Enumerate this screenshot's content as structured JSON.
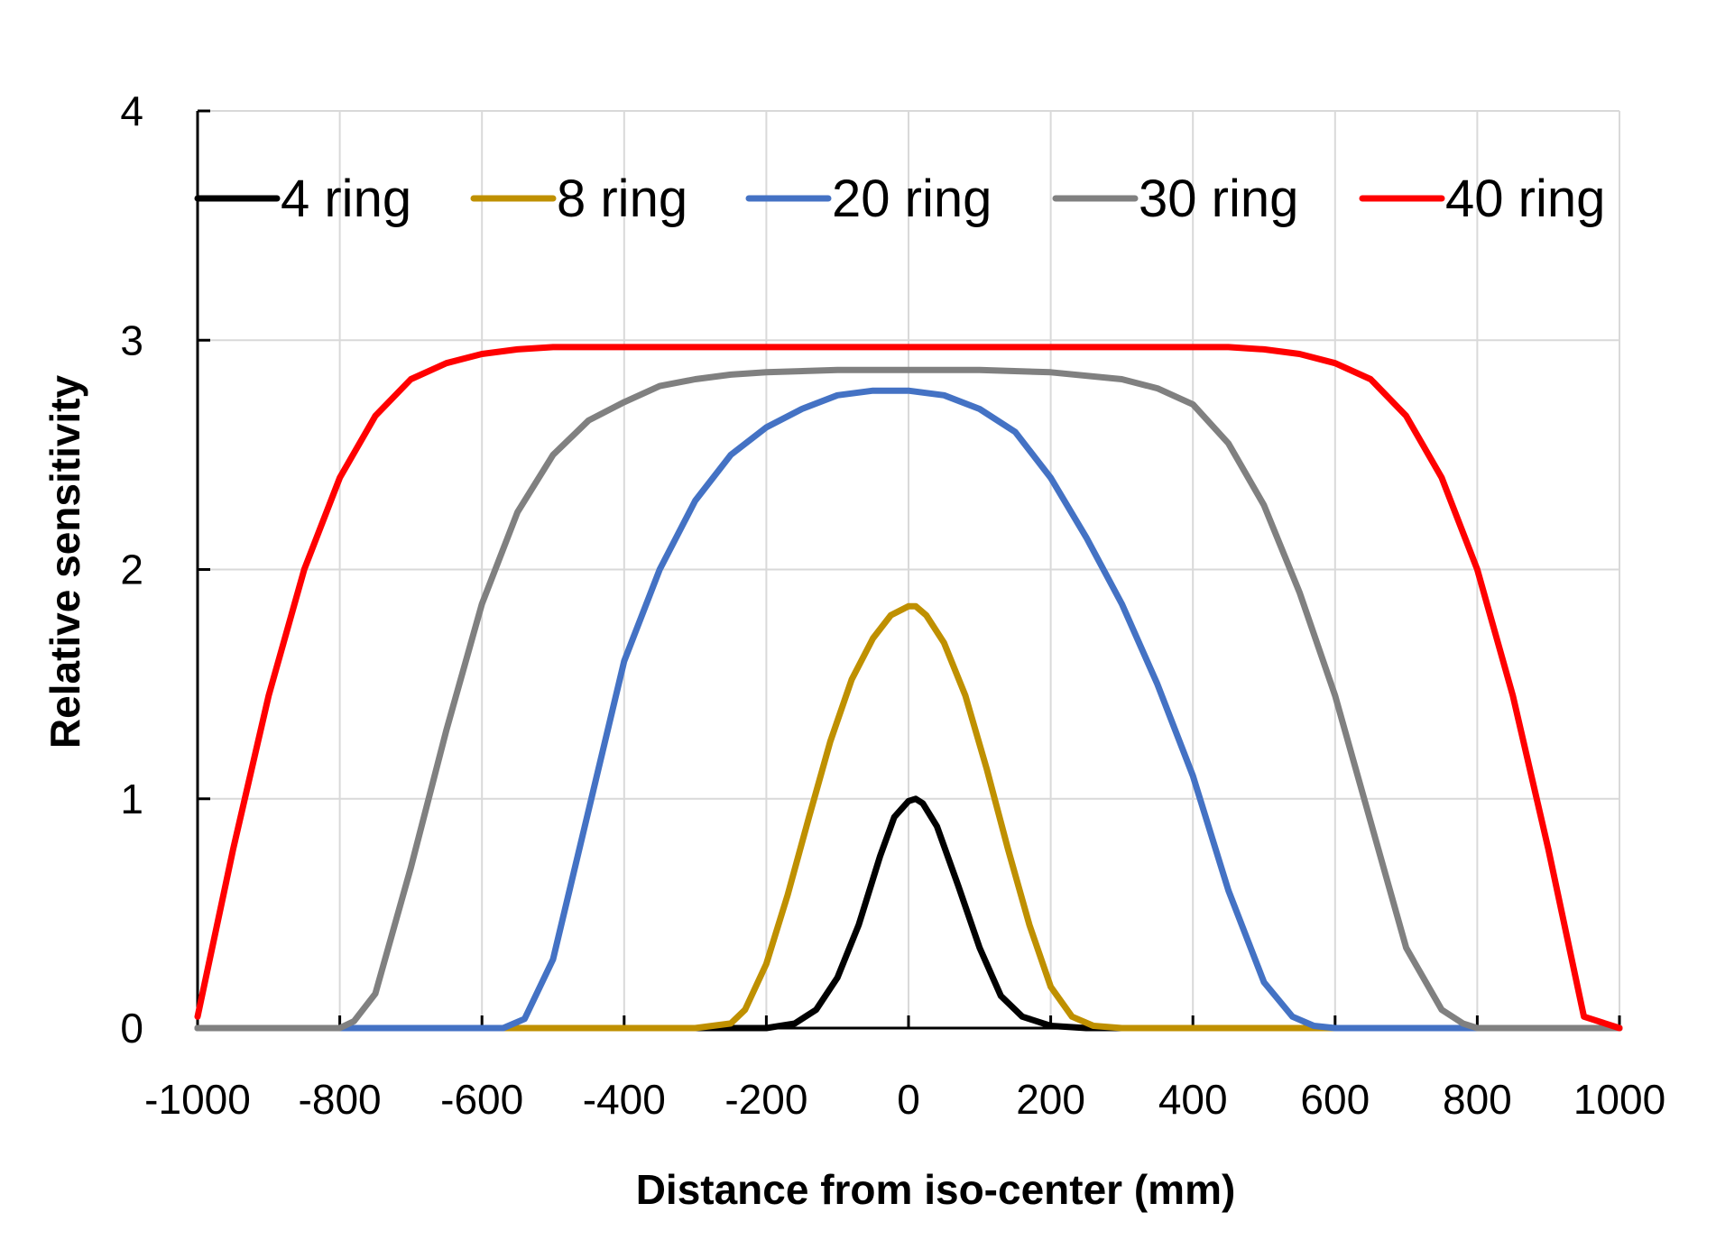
{
  "chart_data": {
    "type": "line",
    "title": "",
    "xlabel": "Distance from iso-center (mm)",
    "ylabel": "Relative sensitivity",
    "xlim": [
      -1000,
      1000
    ],
    "ylim": [
      0,
      4
    ],
    "xticks": [
      -1000,
      -800,
      -600,
      -400,
      -200,
      0,
      200,
      400,
      600,
      800,
      1000
    ],
    "yticks": [
      0,
      1,
      2,
      3,
      4
    ],
    "xtick_labels": [
      "-1000",
      "-800",
      "-600",
      "-400",
      "-200",
      "0",
      "200",
      "400",
      "600",
      "800",
      "1000"
    ],
    "ytick_labels": [
      "0",
      "1",
      "2",
      "3",
      "4"
    ],
    "grid": true,
    "legend_position": "top",
    "series": [
      {
        "name": "4 ring",
        "color": "#000000",
        "x": [
          -1000,
          -250,
          -200,
          -160,
          -130,
          -100,
          -70,
          -40,
          -20,
          0,
          10,
          20,
          40,
          70,
          100,
          130,
          160,
          200,
          250,
          1000
        ],
        "y": [
          0,
          0,
          0,
          0.02,
          0.08,
          0.22,
          0.45,
          0.75,
          0.92,
          0.99,
          1.0,
          0.98,
          0.88,
          0.62,
          0.35,
          0.14,
          0.05,
          0.01,
          0,
          0
        ]
      },
      {
        "name": "8 ring",
        "color": "#BF9000",
        "x": [
          -1000,
          -300,
          -250,
          -230,
          -200,
          -170,
          -140,
          -110,
          -80,
          -50,
          -25,
          0,
          10,
          25,
          50,
          80,
          110,
          140,
          170,
          200,
          230,
          260,
          300,
          1000
        ],
        "y": [
          0,
          0,
          0.02,
          0.08,
          0.28,
          0.58,
          0.92,
          1.25,
          1.52,
          1.7,
          1.8,
          1.84,
          1.84,
          1.8,
          1.68,
          1.45,
          1.13,
          0.78,
          0.45,
          0.18,
          0.05,
          0.01,
          0,
          0
        ]
      },
      {
        "name": "20 ring",
        "color": "#4472C4",
        "x": [
          -1000,
          -570,
          -540,
          -500,
          -450,
          -400,
          -350,
          -300,
          -250,
          -200,
          -150,
          -100,
          -50,
          0,
          50,
          100,
          150,
          200,
          250,
          300,
          350,
          400,
          450,
          500,
          540,
          570,
          600,
          1000
        ],
        "y": [
          0,
          0,
          0.04,
          0.3,
          0.95,
          1.6,
          2.0,
          2.3,
          2.5,
          2.62,
          2.7,
          2.76,
          2.78,
          2.78,
          2.76,
          2.7,
          2.6,
          2.4,
          2.14,
          1.85,
          1.5,
          1.1,
          0.6,
          0.2,
          0.05,
          0.01,
          0,
          0
        ]
      },
      {
        "name": "30 ring",
        "color": "#808080",
        "x": [
          -1000,
          -800,
          -780,
          -750,
          -700,
          -650,
          -600,
          -550,
          -500,
          -450,
          -400,
          -350,
          -300,
          -250,
          -200,
          -100,
          0,
          100,
          200,
          300,
          350,
          400,
          450,
          500,
          550,
          600,
          650,
          700,
          750,
          780,
          800,
          1000
        ],
        "y": [
          0,
          0,
          0.03,
          0.15,
          0.7,
          1.3,
          1.85,
          2.25,
          2.5,
          2.65,
          2.73,
          2.8,
          2.83,
          2.85,
          2.86,
          2.87,
          2.87,
          2.87,
          2.86,
          2.83,
          2.79,
          2.72,
          2.55,
          2.28,
          1.9,
          1.45,
          0.9,
          0.35,
          0.08,
          0.02,
          0,
          0
        ]
      },
      {
        "name": "40 ring",
        "color": "#FF0000",
        "x": [
          -1000,
          -950,
          -900,
          -850,
          -800,
          -750,
          -700,
          -650,
          -600,
          -550,
          -500,
          -450,
          -400,
          0,
          400,
          450,
          500,
          550,
          600,
          650,
          700,
          750,
          800,
          850,
          900,
          950,
          1000
        ],
        "y": [
          0.05,
          0.78,
          1.45,
          2.0,
          2.4,
          2.67,
          2.83,
          2.9,
          2.94,
          2.96,
          2.97,
          2.97,
          2.97,
          2.97,
          2.97,
          2.97,
          2.96,
          2.94,
          2.9,
          2.83,
          2.67,
          2.4,
          2.0,
          1.45,
          0.78,
          0.05,
          0.0
        ]
      }
    ]
  }
}
